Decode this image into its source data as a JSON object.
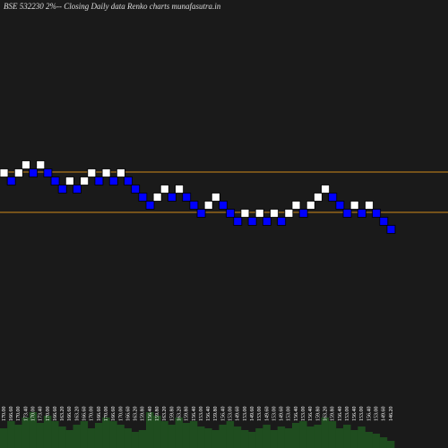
{
  "chart_data": {
    "type": "renko",
    "title": "BSE 532230  2%-- Closing Daily data Renko  charts munafasutra.in",
    "values": [
      170,
      166.6,
      170,
      173.4,
      170,
      173.4,
      170,
      166.6,
      163.2,
      166.6,
      163.2,
      166.6,
      170,
      166.6,
      170,
      166.6,
      170,
      166.6,
      163.2,
      159.8,
      156.4,
      159.8,
      163.2,
      159.8,
      163.2,
      159.8,
      156.4,
      153,
      156.4,
      159.8,
      156.4,
      153,
      149.6,
      153,
      149.6,
      153,
      149.6,
      153,
      149.6,
      153,
      156.4,
      153,
      156.4,
      159.8,
      163.2,
      159.8,
      156.4,
      153,
      156.4,
      153,
      156.4,
      153,
      149.6,
      146.2
    ],
    "value_labels": [
      "170.00",
      "166.60",
      "170.00",
      "173.40",
      "170.00",
      "173.40",
      "170.00",
      "166.60",
      "163.20",
      "166.60",
      "163.20",
      "166.60",
      "170.00",
      "166.60",
      "170.00",
      "166.60",
      "170.00",
      "166.60",
      "163.20",
      "159.80",
      "156.40",
      "159.80",
      "163.20",
      "159.80",
      "163.20",
      "159.80",
      "156.40",
      "153.00",
      "156.40",
      "159.80",
      "156.40",
      "153.00",
      "149.60",
      "153.00",
      "149.60",
      "153.00",
      "149.60",
      "153.00",
      "149.60",
      "153.00",
      "156.40",
      "153.00",
      "156.40",
      "159.80",
      "163.20",
      "159.80",
      "156.40",
      "153.00",
      "156.40",
      "153.00",
      "156.40",
      "153.00",
      "149.60",
      "146.20"
    ],
    "volumes": [
      22,
      30,
      26,
      34,
      40,
      28,
      36,
      30,
      24,
      20,
      26,
      30,
      22,
      28,
      34,
      30,
      26,
      22,
      18,
      20,
      40,
      36,
      30,
      26,
      34,
      28,
      30,
      24,
      22,
      20,
      26,
      30,
      24,
      20,
      18,
      22,
      26,
      20,
      24,
      22,
      28,
      30,
      24,
      26,
      34,
      30,
      22,
      26,
      20,
      24,
      18,
      16,
      12,
      8
    ],
    "up_color": "#ffffff",
    "down_color": "#0000ff",
    "volume_color": "#1f4d1f",
    "reference_lines": [
      170.4,
      153.4
    ],
    "reference_color": "#d08a1a"
  }
}
